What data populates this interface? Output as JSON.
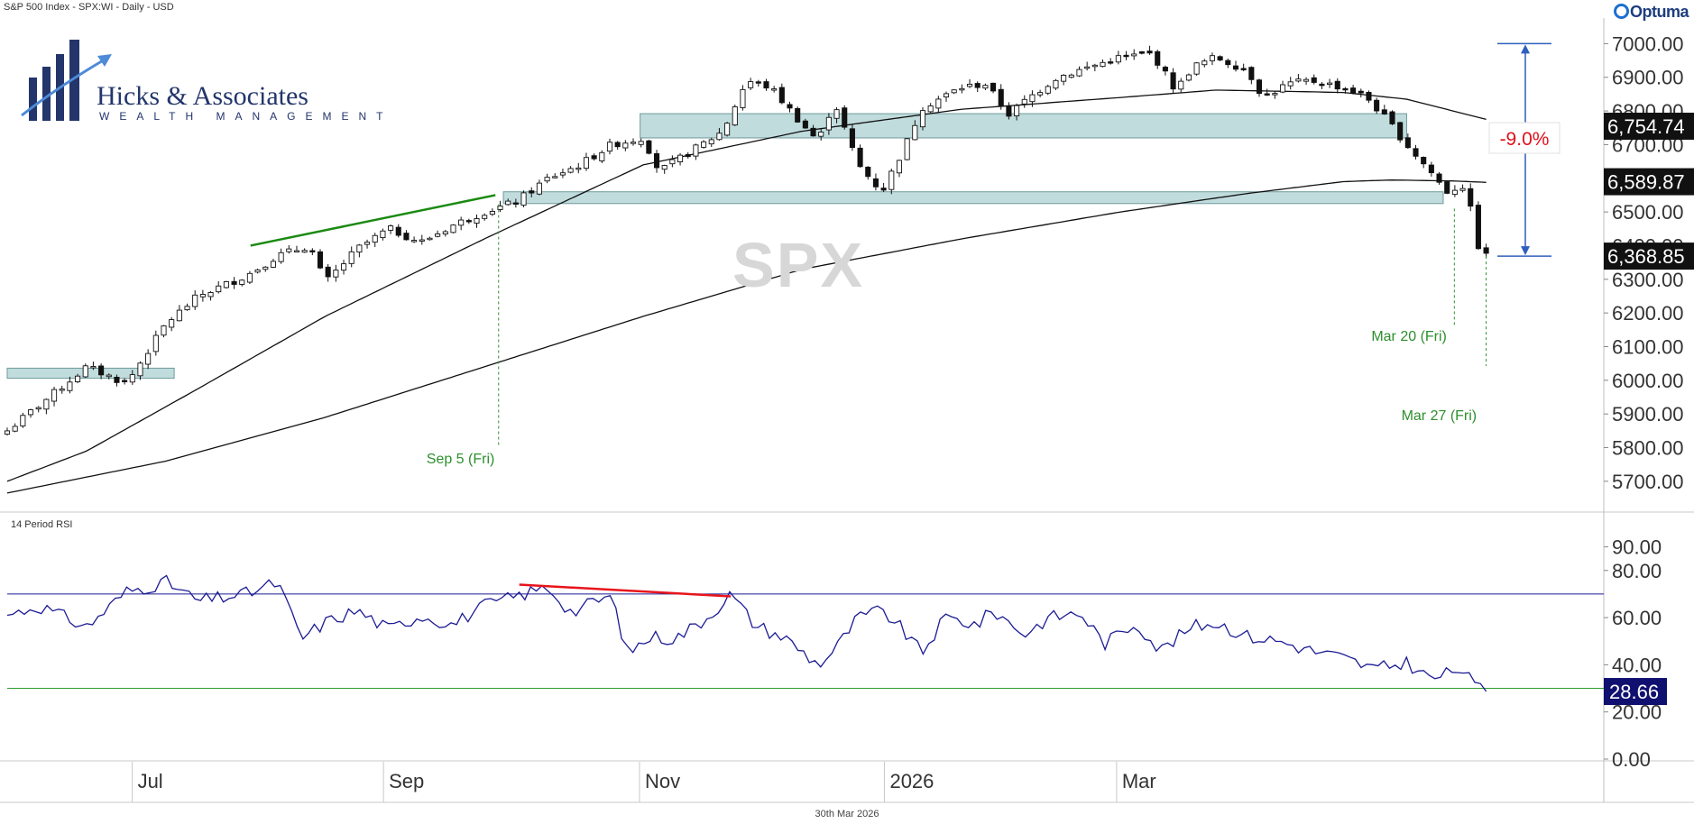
{
  "header": {
    "title": "S&P 500 Index - SPX:WI - Daily - USD",
    "brand": "Optuma"
  },
  "logo": {
    "name": "Hicks & Associates",
    "subtitle": "WEALTH MANAGEMENT"
  },
  "watermark": "SPX",
  "rsi_title": "14 Period RSI",
  "footer_date": "30th Mar 2026",
  "colors": {
    "price_line": "#111111",
    "zone_fill": "#9fcacb",
    "trend_up": "#1a8a12",
    "divergence": "#e8141b",
    "rsi_line": "#1b1b94",
    "rsi_upper": "#1b1b94",
    "rsi_lower": "#2d9c2d",
    "annotation_green": "#2d8f2d",
    "drawdown_blue": "#2f5fbe",
    "drawdown_red": "#e0101a"
  },
  "chart_data": [
    {
      "type": "candlestick",
      "title": "S&P 500 Index - SPX:WI - Daily - USD",
      "y_axis": {
        "side": "right",
        "ticks": [
          "5700.00",
          "5800.00",
          "5900.00",
          "6000.00",
          "6100.00",
          "6200.00",
          "6300.00",
          "6400.00",
          "6500.00",
          "6700.00",
          "6800.00",
          "6900.00",
          "7000.00"
        ],
        "range": [
          5630,
          7060
        ]
      },
      "x_axis": {
        "ticks": [
          "Jul",
          "Sep",
          "Nov",
          "2026",
          "Mar"
        ]
      },
      "price_labels": [
        "6,754.74",
        "6,589.87",
        "6,368.85"
      ],
      "moving_averages": [
        {
          "anchors": [
            [
              0,
              5700
            ],
            [
              0.05,
              5790
            ],
            [
              0.12,
              5975
            ],
            [
              0.2,
              6190
            ],
            [
              0.3,
              6420
            ],
            [
              0.4,
              6640
            ],
            [
              0.5,
              6740
            ],
            [
              0.6,
              6805
            ],
            [
              0.7,
              6840
            ],
            [
              0.76,
              6862
            ],
            [
              0.84,
              6855
            ],
            [
              0.88,
              6835
            ],
            [
              0.93,
              6775
            ]
          ]
        },
        {
          "anchors": [
            [
              0,
              5665
            ],
            [
              0.1,
              5760
            ],
            [
              0.2,
              5890
            ],
            [
              0.3,
              6040
            ],
            [
              0.4,
              6190
            ],
            [
              0.5,
              6330
            ],
            [
              0.6,
              6420
            ],
            [
              0.7,
              6500
            ],
            [
              0.78,
              6555
            ],
            [
              0.84,
              6590
            ],
            [
              0.87,
              6595
            ],
            [
              0.91,
              6592
            ],
            [
              0.93,
              6588
            ]
          ]
        }
      ],
      "support_zones": [
        {
          "t": [
            0.0,
            0.105
          ],
          "price": [
            6006,
            6036
          ]
        },
        {
          "t": [
            0.312,
            0.903
          ],
          "price": [
            6525,
            6560
          ]
        },
        {
          "t": [
            0.398,
            0.88
          ],
          "price": [
            6720,
            6792
          ]
        }
      ],
      "trendline": {
        "from": [
          0.153,
          6400
        ],
        "to": [
          0.307,
          6550
        ]
      },
      "event_markers": [
        {
          "label": "Sep 5 (Fri)",
          "t": 0.309,
          "price": 6523
        },
        {
          "label": "Mar 20 (Fri)",
          "t": 0.91,
          "price": 6510
        },
        {
          "label": "Mar 27 (Fri)",
          "t": 0.93,
          "price": 6368.85
        }
      ],
      "drawdown": {
        "label": "-9.0%",
        "from_price": 7000,
        "to_price": 6368.85
      },
      "price_anchors": [
        [
          0.0,
          5850
        ],
        [
          0.05,
          6040
        ],
        [
          0.075,
          5990
        ],
        [
          0.1,
          6170
        ],
        [
          0.12,
          6250
        ],
        [
          0.15,
          6310
        ],
        [
          0.17,
          6370
        ],
        [
          0.19,
          6400
        ],
        [
          0.2,
          6290
        ],
        [
          0.22,
          6390
        ],
        [
          0.24,
          6450
        ],
        [
          0.26,
          6410
        ],
        [
          0.28,
          6460
        ],
        [
          0.3,
          6500
        ],
        [
          0.32,
          6530
        ],
        [
          0.34,
          6600
        ],
        [
          0.36,
          6640
        ],
        [
          0.38,
          6700
        ],
        [
          0.4,
          6720
        ],
        [
          0.41,
          6620
        ],
        [
          0.43,
          6680
        ],
        [
          0.45,
          6740
        ],
        [
          0.465,
          6890
        ],
        [
          0.48,
          6870
        ],
        [
          0.5,
          6760
        ],
        [
          0.51,
          6710
        ],
        [
          0.52,
          6830
        ],
        [
          0.535,
          6640
        ],
        [
          0.55,
          6560
        ],
        [
          0.565,
          6700
        ],
        [
          0.575,
          6810
        ],
        [
          0.6,
          6870
        ],
        [
          0.615,
          6880
        ],
        [
          0.63,
          6790
        ],
        [
          0.64,
          6830
        ],
        [
          0.66,
          6900
        ],
        [
          0.68,
          6930
        ],
        [
          0.7,
          6960
        ],
        [
          0.72,
          6970
        ],
        [
          0.735,
          6860
        ],
        [
          0.745,
          6930
        ],
        [
          0.76,
          6960
        ],
        [
          0.78,
          6920
        ],
        [
          0.79,
          6840
        ],
        [
          0.805,
          6880
        ],
        [
          0.82,
          6890
        ],
        [
          0.84,
          6870
        ],
        [
          0.855,
          6840
        ],
        [
          0.87,
          6760
        ],
        [
          0.88,
          6700
        ],
        [
          0.895,
          6620
        ],
        [
          0.905,
          6560
        ],
        [
          0.915,
          6580
        ],
        [
          0.92,
          6510
        ],
        [
          0.925,
          6400
        ],
        [
          0.93,
          6368.85
        ]
      ]
    },
    {
      "type": "line",
      "title": "14 Period RSI",
      "y_axis": {
        "ticks": [
          "0.00",
          "20.00",
          "40.00",
          "60.00",
          "80.00",
          "90.00"
        ],
        "range": [
          0,
          104
        ]
      },
      "reference_lines": [
        70,
        30
      ],
      "last_value": "28.66",
      "divergence_line": {
        "from": [
          0.322,
          74
        ],
        "to": [
          0.455,
          69
        ]
      },
      "rsi_anchors": [
        [
          0.0,
          61
        ],
        [
          0.02,
          65
        ],
        [
          0.05,
          56
        ],
        [
          0.075,
          71
        ],
        [
          0.1,
          75
        ],
        [
          0.12,
          67
        ],
        [
          0.15,
          70
        ],
        [
          0.17,
          75
        ],
        [
          0.185,
          51
        ],
        [
          0.2,
          58
        ],
        [
          0.22,
          63
        ],
        [
          0.24,
          55
        ],
        [
          0.26,
          61
        ],
        [
          0.28,
          57
        ],
        [
          0.3,
          65
        ],
        [
          0.32,
          69
        ],
        [
          0.34,
          73
        ],
        [
          0.355,
          62
        ],
        [
          0.37,
          67
        ],
        [
          0.38,
          69
        ],
        [
          0.39,
          45
        ],
        [
          0.405,
          52
        ],
        [
          0.42,
          51
        ],
        [
          0.44,
          60
        ],
        [
          0.455,
          70
        ],
        [
          0.47,
          57
        ],
        [
          0.49,
          51
        ],
        [
          0.51,
          40
        ],
        [
          0.52,
          46
        ],
        [
          0.535,
          60
        ],
        [
          0.55,
          63
        ],
        [
          0.56,
          57
        ],
        [
          0.575,
          45
        ],
        [
          0.59,
          60
        ],
        [
          0.61,
          57
        ],
        [
          0.62,
          63
        ],
        [
          0.64,
          53
        ],
        [
          0.655,
          60
        ],
        [
          0.675,
          62
        ],
        [
          0.69,
          49
        ],
        [
          0.71,
          58
        ],
        [
          0.725,
          46
        ],
        [
          0.745,
          56
        ],
        [
          0.76,
          58
        ],
        [
          0.78,
          52
        ],
        [
          0.8,
          50
        ],
        [
          0.82,
          46
        ],
        [
          0.84,
          43
        ],
        [
          0.86,
          38
        ],
        [
          0.88,
          41
        ],
        [
          0.895,
          34
        ],
        [
          0.905,
          36
        ],
        [
          0.915,
          39
        ],
        [
          0.92,
          33
        ],
        [
          0.925,
          30
        ],
        [
          0.93,
          28.66
        ]
      ]
    }
  ]
}
